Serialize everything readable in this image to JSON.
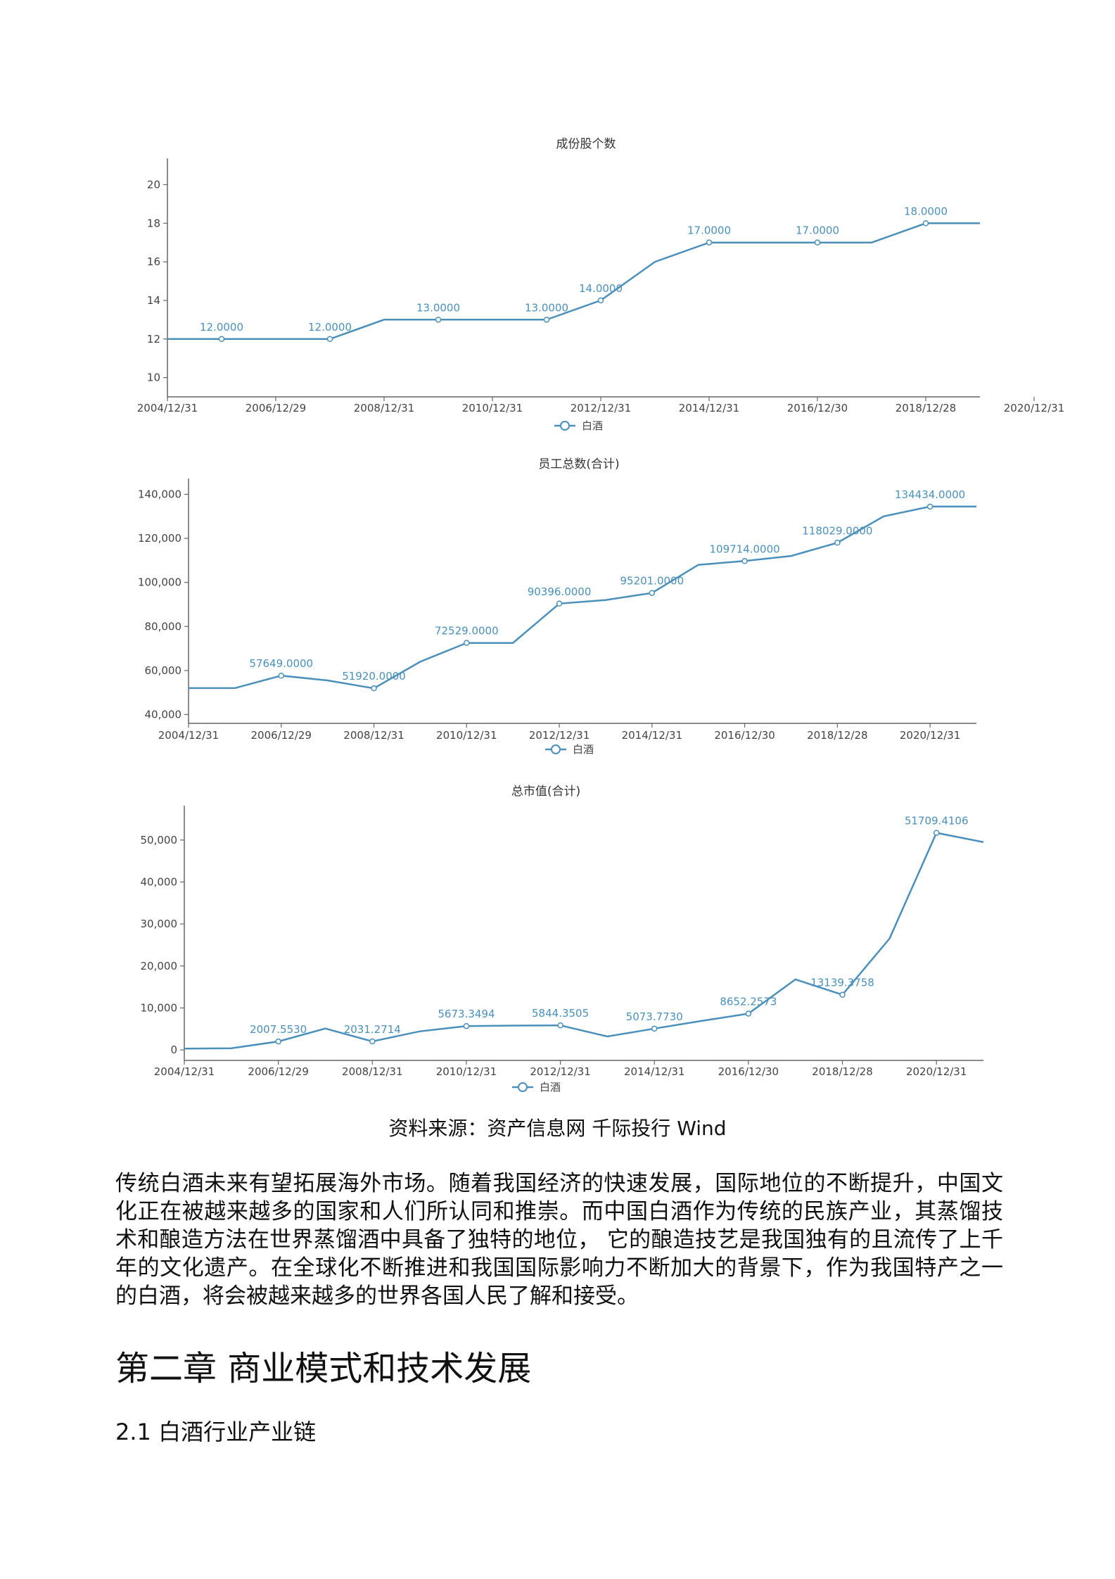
{
  "source_note": "资料来源：资产信息网 千际投行 Wind",
  "paragraph": "传统白酒未来有望拓展海外市场。随着我国经济的快速发展，国际地位的不断提升，中国文化正在被越来越多的国家和人们所认同和推崇。而中国白酒作为传统的民族产业，其蒸馏技术和酿造方法在世界蒸馏酒中具备了独特的地位， 它的酿造技艺是我国独有的且流传了上千年的文化遗产。在全球化不断推进和我国国际影响力不断加大的背景下，作为我国特产之一的白酒，将会被越来越多的世界各国人民了解和接受。",
  "chapter_title": "第二章 商业模式和技术发展",
  "section_title": "2.1 白酒行业产业链",
  "colors": {
    "series": "#4a90bb"
  },
  "chart_data": [
    {
      "type": "line",
      "title": "成份股个数",
      "legend": "白酒",
      "x_ticks": [
        "2004/12/31",
        "2006/12/29",
        "2008/12/31",
        "2010/12/31",
        "2012/12/31",
        "2014/12/31",
        "2016/12/30",
        "2018/12/28",
        "2020/12/31"
      ],
      "y_ticks": [
        "10",
        "12",
        "14",
        "16",
        "18",
        "20"
      ],
      "ylim": [
        9,
        21
      ],
      "series": [
        {
          "values": [
            12,
            12,
            12,
            12,
            13,
            13,
            13,
            13,
            14,
            16,
            17,
            17,
            17,
            17,
            18,
            18
          ],
          "labels": [
            "",
            "12.0000",
            "",
            "12.0000",
            "",
            "13.0000",
            "",
            "13.0000",
            "14.0000",
            "",
            "17.0000",
            "",
            "17.0000",
            "",
            "18.0000",
            ""
          ]
        }
      ]
    },
    {
      "type": "line",
      "title": "员工总数(合计)",
      "legend": "白酒",
      "x_ticks": [
        "2004/12/31",
        "2006/12/29",
        "2008/12/31",
        "2010/12/31",
        "2012/12/31",
        "2014/12/31",
        "2016/12/30",
        "2018/12/28",
        "2020/12/31"
      ],
      "y_ticks": [
        "40,000",
        "60,000",
        "80,000",
        "100,000",
        "120,000",
        "140,000"
      ],
      "ylim": [
        36000,
        144000
      ],
      "series": [
        {
          "values": [
            52000,
            52000,
            57649,
            55500,
            51920,
            64000,
            72529,
            72529,
            90396,
            92000,
            95201,
            108000,
            109714,
            112000,
            118029,
            130000,
            134434,
            134434
          ],
          "labels": [
            "",
            "",
            "57649.0000",
            "",
            "51920.0000",
            "",
            "72529.0000",
            "",
            "90396.0000",
            "",
            "95201.0000",
            "",
            "109714.0000",
            "",
            "118029.0000",
            "",
            "134434.0000",
            ""
          ]
        }
      ]
    },
    {
      "type": "line",
      "title": "总市值(合计)",
      "legend": "白酒",
      "x_ticks": [
        "2004/12/31",
        "2006/12/29",
        "2008/12/31",
        "2010/12/31",
        "2012/12/31",
        "2014/12/31",
        "2016/12/30",
        "2018/12/28",
        "2020/12/31"
      ],
      "y_ticks": [
        "0",
        "10,000",
        "20,000",
        "30,000",
        "40,000",
        "50,000"
      ],
      "ylim": [
        -2500,
        56500
      ],
      "series": [
        {
          "values": [
            300,
            400,
            2007.553,
            5100,
            2031.2714,
            4400,
            5673.3494,
            5800,
            5844.3505,
            3200,
            5073.773,
            6900,
            8652.2573,
            16800,
            13139.3758,
            26500,
            51709.4106,
            49500
          ],
          "labels": [
            "",
            "",
            "2007.5530",
            "",
            "2031.2714",
            "",
            "5673.3494",
            "",
            "5844.3505",
            "",
            "5073.7730",
            "",
            "8652.2573",
            "",
            "13139.3758",
            "",
            "51709.4106",
            ""
          ]
        }
      ]
    }
  ]
}
